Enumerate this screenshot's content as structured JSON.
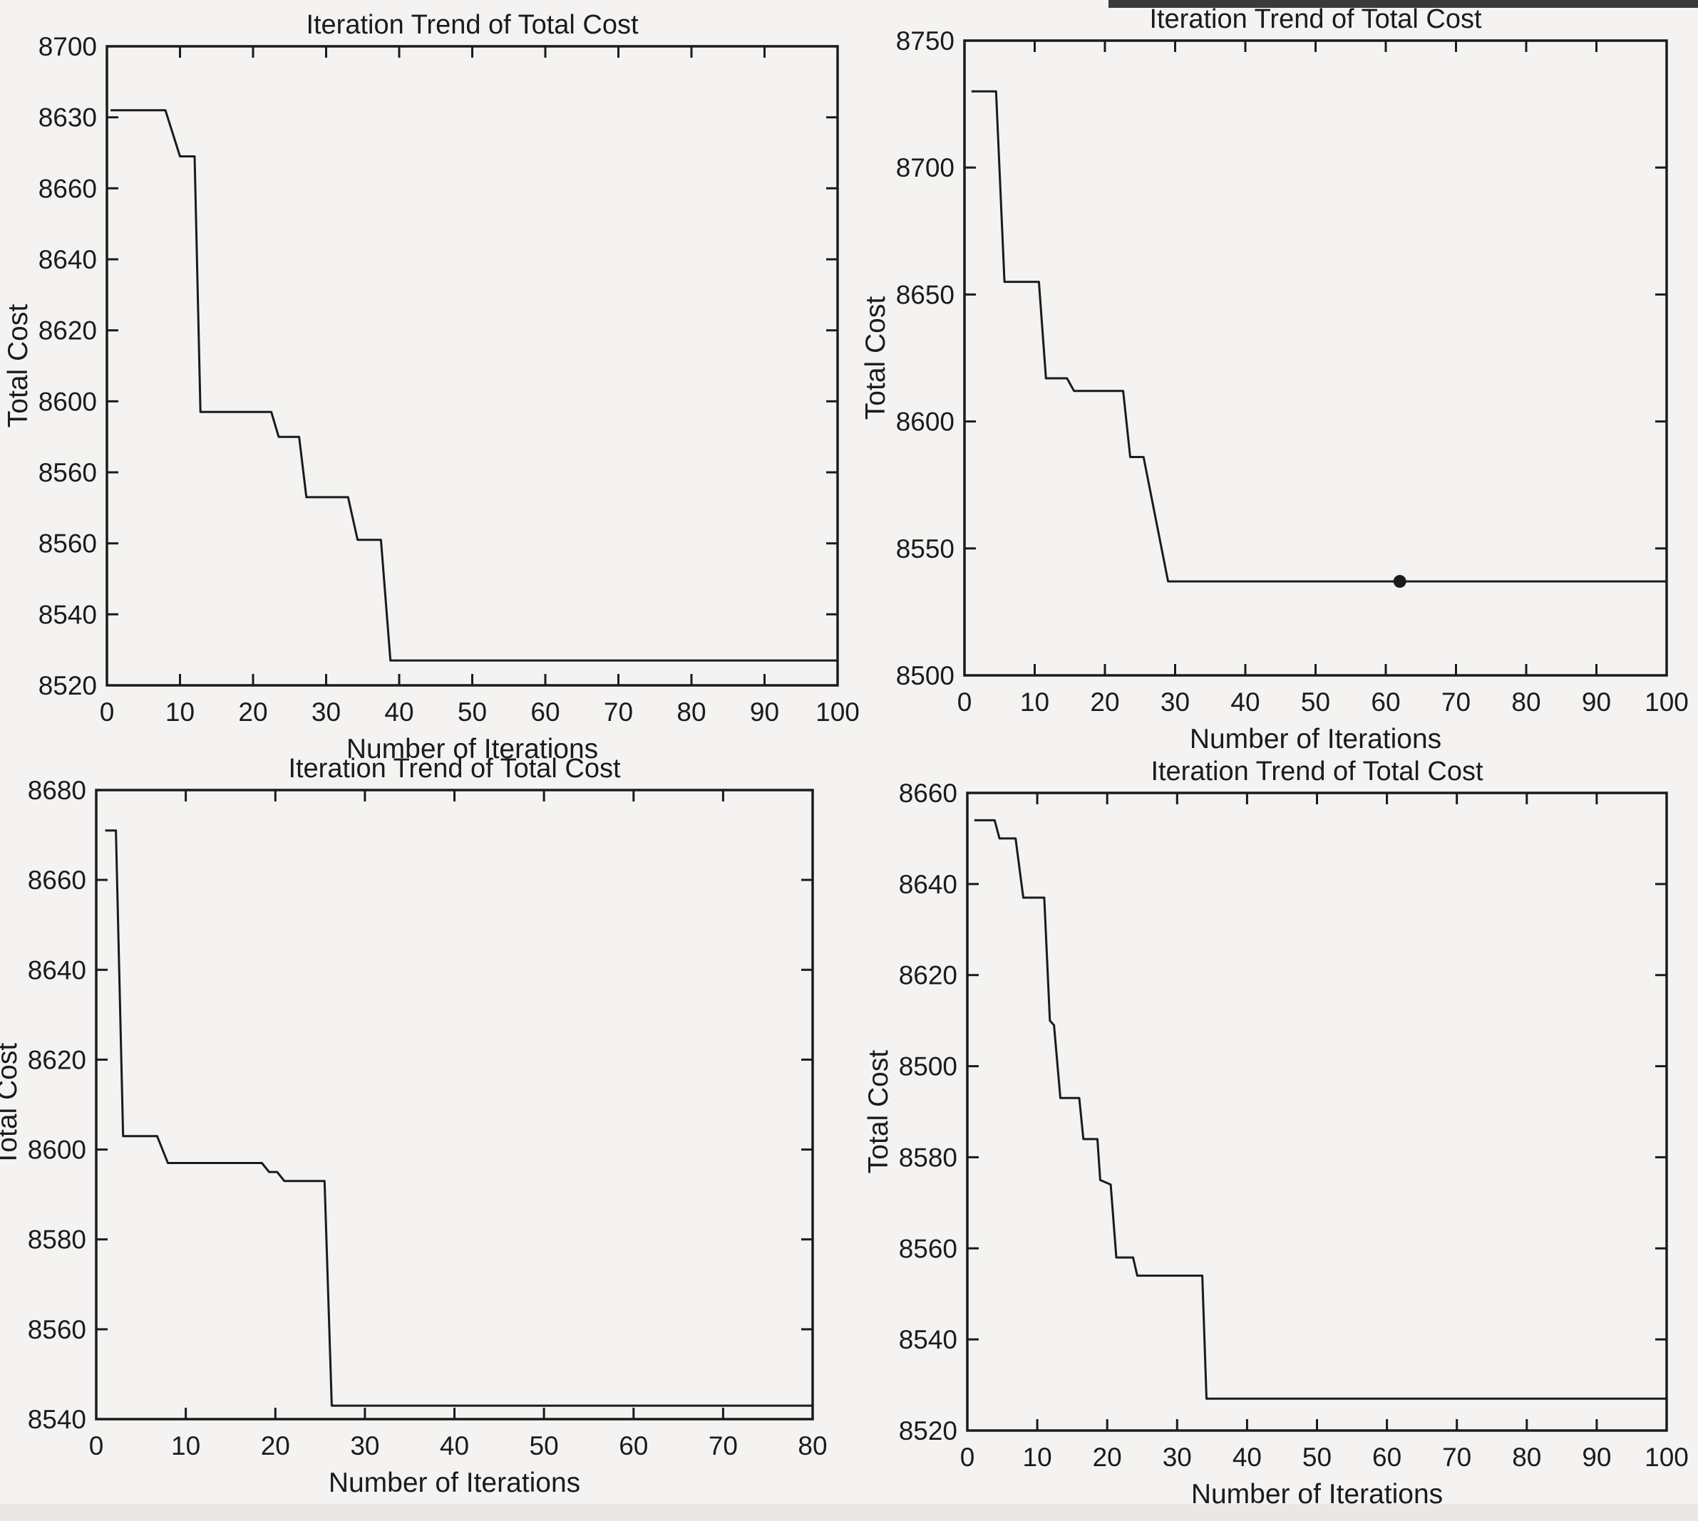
{
  "page": {
    "background_color": "#f4f3f1",
    "text_color": "#1b1b1b",
    "axis_color": "#1b1b1b",
    "line_color": "#1b1b1b",
    "scan_artifacts": {
      "top_right_strip_color": "#3a3a3a",
      "bottom_band_color": "#eae8e4"
    }
  },
  "chart_data": [
    {
      "id": "top-left",
      "type": "line",
      "title": "Iteration Trend of Total Cost",
      "xlabel": "Number of Iterations",
      "ylabel": "Total Cost",
      "xlim": [
        0,
        100
      ],
      "ylim": [
        8520,
        8700
      ],
      "xticks": [
        0,
        10,
        20,
        30,
        40,
        50,
        60,
        70,
        80,
        90,
        100
      ],
      "ytick_values": [
        8700,
        8680,
        8660,
        8640,
        8620,
        8600,
        8580,
        8560,
        8540,
        8520
      ],
      "ytick_labels": [
        "8700",
        "8630",
        "8660",
        "8640",
        "8620",
        "8600",
        "8560",
        "8560",
        "8540",
        "8520"
      ],
      "grid": false,
      "legend": null,
      "series": [
        {
          "name": "total-cost",
          "x": [
            0.5,
            8,
            10,
            12,
            12.8,
            22.5,
            23.5,
            26.3,
            27.3,
            33,
            34.3,
            37.5,
            38.8,
            100
          ],
          "y": [
            8682,
            8682,
            8669,
            8669,
            8597,
            8597,
            8590,
            8590,
            8573,
            8573,
            8561,
            8561,
            8527,
            8527
          ]
        }
      ],
      "marker": null
    },
    {
      "id": "top-right",
      "type": "line",
      "title": "Iteration Trend of Total Cost",
      "xlabel": "Number of Iterations",
      "ylabel": "Total Cost",
      "xlim": [
        0,
        100
      ],
      "ylim": [
        8500,
        8750
      ],
      "xticks": [
        0,
        10,
        20,
        30,
        40,
        50,
        60,
        70,
        80,
        90,
        100
      ],
      "ytick_values": [
        8750,
        8700,
        8650,
        8600,
        8550,
        8500
      ],
      "ytick_labels": [
        "8750",
        "8700",
        "8650",
        "8600",
        "8550",
        "8500"
      ],
      "grid": false,
      "legend": null,
      "series": [
        {
          "name": "total-cost",
          "x": [
            1,
            4.5,
            5.7,
            10.6,
            11.6,
            14.6,
            15.6,
            22.6,
            23.6,
            25.5,
            29,
            100
          ],
          "y": [
            8730,
            8730,
            8655,
            8655,
            8617,
            8617,
            8612,
            8612,
            8586,
            8586,
            8537,
            8537
          ]
        }
      ],
      "marker": {
        "x": 62,
        "y": 8537
      }
    },
    {
      "id": "bottom-left",
      "type": "line",
      "title": "Iteration Trend of Total Cost",
      "xlabel": "Number of Iterations",
      "ylabel": "Total Cost",
      "xlim": [
        0,
        80
      ],
      "ylim": [
        8540,
        8680
      ],
      "xticks": [
        0,
        10,
        20,
        30,
        40,
        50,
        60,
        70,
        80
      ],
      "ytick_values": [
        8680,
        8660,
        8640,
        8620,
        8600,
        8580,
        8560,
        8540
      ],
      "ytick_labels": [
        "8680",
        "8660",
        "8640",
        "8620",
        "8600",
        "8580",
        "8560",
        "8540"
      ],
      "grid": false,
      "legend": null,
      "series": [
        {
          "name": "total-cost",
          "x": [
            1,
            2.2,
            3,
            6.8,
            8,
            18.5,
            19.3,
            20.2,
            21,
            25.5,
            26.3,
            80
          ],
          "y": [
            8671,
            8671,
            8603,
            8603,
            8597,
            8597,
            8595,
            8595,
            8593,
            8593,
            8543,
            8543
          ]
        }
      ],
      "marker": null
    },
    {
      "id": "bottom-right",
      "type": "line",
      "title": "Iteration Trend of Total Cost",
      "xlabel": "Number of Iterations",
      "ylabel": "Total Cost",
      "xlim": [
        0,
        100
      ],
      "ylim": [
        8520,
        8660
      ],
      "xticks": [
        0,
        10,
        20,
        30,
        40,
        50,
        60,
        70,
        80,
        90,
        100
      ],
      "ytick_values": [
        8660,
        8640,
        8620,
        8600,
        8580,
        8560,
        8540,
        8520
      ],
      "ytick_labels": [
        "8660",
        "8640",
        "8620",
        "8500",
        "8580",
        "8560",
        "8540",
        "8520"
      ],
      "grid": false,
      "legend": null,
      "series": [
        {
          "name": "total-cost",
          "x": [
            1,
            3.9,
            4.6,
            6.9,
            8,
            11,
            11.8,
            12.4,
            13.3,
            16,
            16.6,
            18.6,
            19,
            20.5,
            21.3,
            23.7,
            24.3,
            33.6,
            34.2,
            100
          ],
          "y": [
            8654,
            8654,
            8650,
            8650,
            8637,
            8637,
            8610,
            8609,
            8593,
            8593,
            8584,
            8584,
            8575,
            8574,
            8558,
            8558,
            8554,
            8554,
            8527,
            8527
          ]
        }
      ],
      "marker": null
    }
  ]
}
